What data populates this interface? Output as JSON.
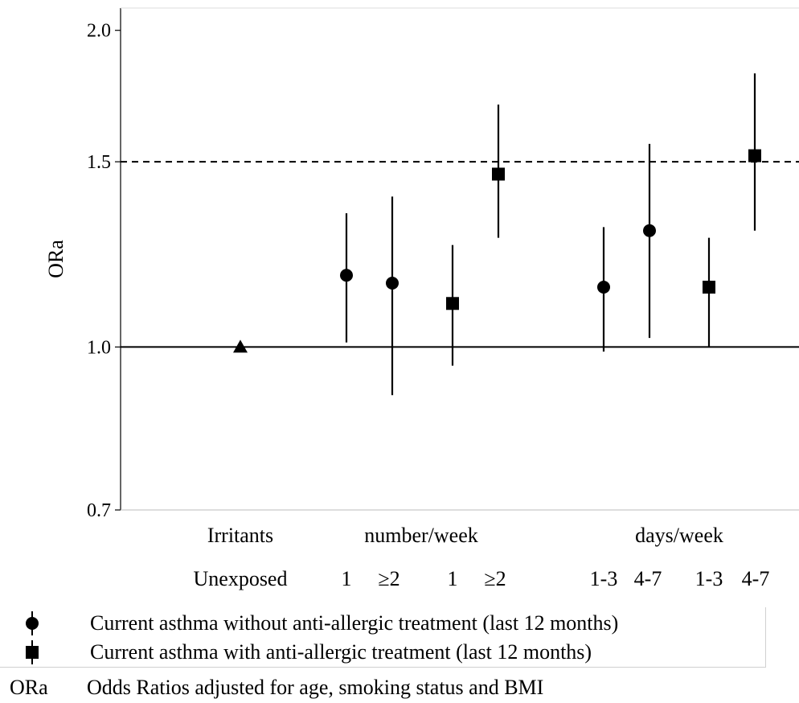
{
  "chart_data": {
    "type": "scatter",
    "ylabel": "ORa",
    "ylim": [
      0.7,
      2.1
    ],
    "yticks": [
      0.7,
      1.0,
      1.5,
      2.0
    ],
    "reference_lines": [
      {
        "y": 1.0,
        "style": "solid"
      },
      {
        "y": 1.5,
        "style": "dashed"
      }
    ],
    "group_labels": [
      "Irritants",
      "number/week",
      "days/week"
    ],
    "x_labels": [
      "Unexposed",
      "1",
      "≥2",
      "1",
      "≥2",
      "1-3",
      "4-7",
      "1-3",
      "4-7"
    ],
    "reference": {
      "label": "Unexposed",
      "value": 1.0,
      "marker": "triangle"
    },
    "series": [
      {
        "name": "Current asthma without anti-allergic treatment (last 12 months)",
        "marker": "circle",
        "points": [
          {
            "group": "number/week",
            "x": "1",
            "estimate": 1.17,
            "lower": 1.01,
            "upper": 1.34
          },
          {
            "group": "number/week",
            "x": "≥2",
            "estimate": 1.15,
            "lower": 0.9,
            "upper": 1.39
          },
          {
            "group": "days/week",
            "x": "1-3",
            "estimate": 1.14,
            "lower": 0.99,
            "upper": 1.3
          },
          {
            "group": "days/week",
            "x": "4-7",
            "estimate": 1.29,
            "lower": 1.02,
            "upper": 1.56
          }
        ]
      },
      {
        "name": "Current asthma with anti-allergic treatment (last 12 months)",
        "marker": "square",
        "points": [
          {
            "group": "number/week",
            "x": "1",
            "estimate": 1.1,
            "lower": 0.96,
            "upper": 1.25
          },
          {
            "group": "number/week",
            "x": "≥2",
            "estimate": 1.46,
            "lower": 1.27,
            "upper": 1.7
          },
          {
            "group": "days/week",
            "x": "1-3",
            "estimate": 1.14,
            "lower": 1.0,
            "upper": 1.27
          },
          {
            "group": "days/week",
            "x": "4-7",
            "estimate": 1.52,
            "lower": 1.29,
            "upper": 1.82
          }
        ]
      }
    ]
  },
  "legend": {
    "circle_label": "Current asthma without anti-allergic treatment (last 12 months)",
    "square_label": "Current asthma with anti-allergic treatment (last 12 months)"
  },
  "footnote": {
    "abbr": "ORa",
    "text": "Odds Ratios adjusted for age, smoking status and BMI"
  }
}
